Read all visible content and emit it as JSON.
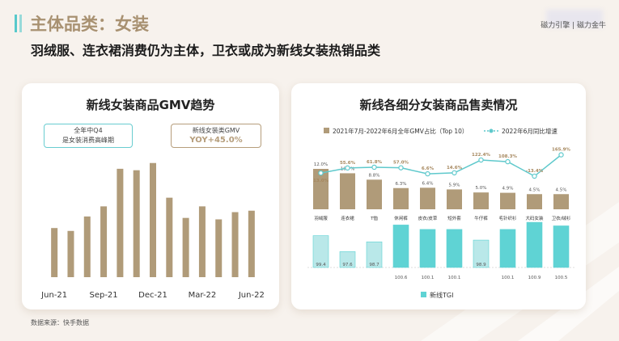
{
  "header": {
    "title": "主体品类：女装",
    "subtitle": "羽绒服、连衣裙消费仍为主体，卫衣或成为新线女装热销品类",
    "logo_text": "磁力引擎 | 磁力金牛"
  },
  "left_card": {
    "title": "新线女装商品GMV趋势",
    "callout1_line1": "全年中Q4",
    "callout1_line2": "是女装消费高峰期",
    "callout2_line1": "新线女装类GMV",
    "callout2_line2": "YOY+45.0%"
  },
  "right_card": {
    "title": "新线各细分女装商品售卖情况"
  },
  "source": "数据来源：快手数据",
  "colors": {
    "brown": "#b09b79",
    "teal": "#5fd3d4",
    "teal_light": "#b9e8e9",
    "line": "#5fc9cc"
  },
  "chart_data": [
    {
      "type": "bar",
      "categories": [
        "Jun-21",
        "Jul-21",
        "Aug-21",
        "Sep-21",
        "Oct-21",
        "Nov-21",
        "Dec-21",
        "Jan-22",
        "Feb-22",
        "Mar-22",
        "Apr-22",
        "May-22",
        "Jun-22"
      ],
      "tick_labels": [
        "Jun-21",
        "Sep-21",
        "Dec-21",
        "Mar-22",
        "Jun-22"
      ],
      "values": [
        34,
        32,
        42,
        49,
        75,
        74,
        79,
        55,
        41,
        49,
        40,
        45,
        46
      ],
      "ylim": [
        0,
        85
      ]
    },
    {
      "type": "bar+line",
      "legend": [
        "2021年7月-2022年6月全年GMV占比（Top 10）",
        "2022年6月同比增速"
      ],
      "categories": [
        "羽绒服",
        "连衣裙",
        "T恤",
        "休闲裤",
        "皮衣/皮草",
        "短外套",
        "牛仔裤",
        "毛针织衫",
        "大码女装",
        "卫衣/绒衫"
      ],
      "gmv_share": [
        12.0,
        10.7,
        8.8,
        6.3,
        6.4,
        5.9,
        5.0,
        4.9,
        4.5,
        4.5
      ],
      "gmv_share_labels": [
        "12.0%",
        "10.7%",
        "8.8%",
        "6.3%",
        "6.4%",
        "5.9%",
        "5.0%",
        "4.9%",
        "4.5%",
        "4.5%"
      ],
      "yoy_growth": [
        13.0,
        55.6,
        61.8,
        57.0,
        6.6,
        14.6,
        122.4,
        108.3,
        -13.4,
        165.9
      ],
      "yoy_labels": [
        "13.0%",
        "55.6%",
        "61.8%",
        "57.0%",
        "6.6%",
        "14.6%",
        "122.4%",
        "108.3%",
        "-13.4%",
        "165.9%"
      ],
      "tgi": [
        99.4,
        97.6,
        98.7,
        100.6,
        100.1,
        100.1,
        98.9,
        100.1,
        100.9,
        100.5
      ],
      "tgi_legend": "新线TGI"
    }
  ]
}
